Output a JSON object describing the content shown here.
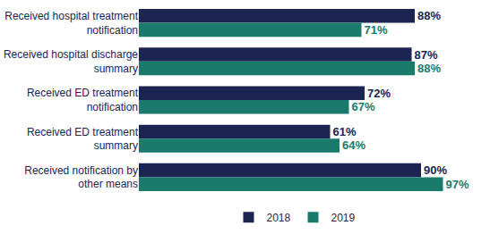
{
  "chart_data": {
    "type": "bar",
    "orientation": "horizontal",
    "categories": [
      "Received hospital treatment notification",
      "Received hospital discharge summary",
      "Received ED treatment notification",
      "Received ED treatment summary",
      "Received notification by other means"
    ],
    "series": [
      {
        "name": "2018",
        "color": "#1c2452",
        "values": [
          88,
          87,
          72,
          61,
          90
        ],
        "value_labels": [
          "88%",
          "87%",
          "72%",
          "61%",
          "90%"
        ]
      },
      {
        "name": "2019",
        "color": "#1a7a6c",
        "values": [
          71,
          88,
          67,
          64,
          97
        ],
        "value_labels": [
          "71%",
          "88%",
          "67%",
          "64%",
          "97%"
        ]
      }
    ],
    "xlim": [
      0,
      100
    ],
    "data_labels": true,
    "tick_labels": "y",
    "grid": false,
    "legend": "bottom"
  }
}
